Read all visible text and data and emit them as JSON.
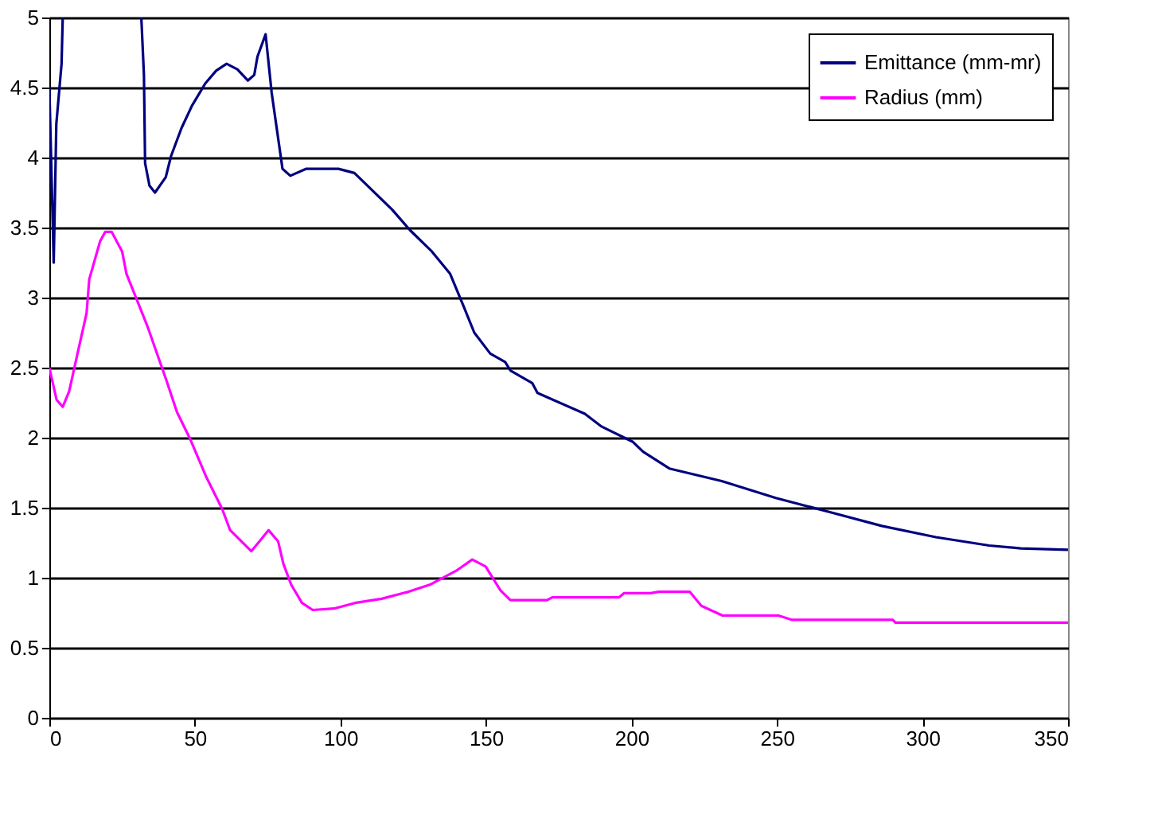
{
  "chart_data": {
    "type": "line",
    "xlim": [
      0,
      350
    ],
    "xticks": [
      0,
      50,
      100,
      150,
      200,
      250,
      300,
      350
    ],
    "ylim": [
      0,
      5
    ],
    "yticks": [
      0,
      0.5,
      1,
      1.5,
      2,
      2.5,
      3,
      3.5,
      4,
      4.5,
      5
    ],
    "grid": "y",
    "legend": "top right",
    "marker": "none",
    "line_style": "solid",
    "series": [
      {
        "name": "Emittance (mm-mr)",
        "color": "#000080",
        "x": [
          0,
          1.5,
          2.4,
          4.2,
          4.6,
          18,
          31.6,
          32.5,
          32.9,
          34.4,
          36.3,
          40,
          41.8,
          45.4,
          49,
          53.6,
          57.3,
          60.9,
          64.6,
          68.2,
          70.4,
          71.5,
          74.3,
          76.4,
          80.1,
          82.8,
          88.3,
          99.3,
          104.8,
          117.7,
          124,
          131.4,
          137.7,
          142.3,
          146,
          151.5,
          156.6,
          158.4,
          165.9,
          167.7,
          184,
          189.7,
          200.5,
          204,
          213,
          231,
          249.6,
          267.9,
          286,
          304.6,
          322.9,
          333.8,
          350
        ],
        "values": [
          4.5,
          3.25,
          4.24,
          4.67,
          5.0,
          null,
          5.0,
          4.59,
          3.96,
          3.8,
          3.75,
          3.86,
          4.01,
          4.21,
          4.37,
          4.53,
          4.62,
          4.67,
          4.63,
          4.55,
          4.59,
          4.72,
          4.88,
          4.46,
          3.92,
          3.87,
          3.92,
          3.92,
          3.89,
          3.63,
          3.48,
          3.33,
          3.17,
          2.94,
          2.75,
          2.6,
          2.54,
          2.48,
          2.39,
          2.32,
          2.17,
          2.08,
          1.97,
          1.9,
          1.78,
          1.69,
          1.57,
          1.47,
          1.37,
          1.29,
          1.23,
          1.21,
          1.2
        ]
      },
      {
        "name": "Radius (mm)",
        "color": "#ff00ff",
        "x": [
          0,
          2.5,
          4.6,
          6.8,
          10.1,
          12.8,
          13.7,
          17.4,
          19.2,
          21.4,
          25,
          26.5,
          33.8,
          40.2,
          43.9,
          48.4,
          53.9,
          59.4,
          62.1,
          69.4,
          72.2,
          75.3,
          78.6,
          80.4,
          83.1,
          86.8,
          90.5,
          97.8,
          105,
          114.2,
          123.4,
          130.7,
          139.8,
          145.3,
          149.9,
          155,
          158.4,
          171,
          172.8,
          195.7,
          197.5,
          206.6,
          209.3,
          215.7,
          220,
          224,
          231.3,
          250.5,
          255,
          289.8,
          290.7,
          350
        ],
        "values": [
          2.5,
          2.27,
          2.22,
          2.33,
          2.64,
          2.89,
          3.13,
          3.4,
          3.47,
          3.47,
          3.33,
          3.17,
          2.79,
          2.41,
          2.18,
          1.99,
          1.72,
          1.49,
          1.34,
          1.19,
          1.26,
          1.34,
          1.26,
          1.1,
          0.95,
          0.82,
          0.77,
          0.78,
          0.82,
          0.85,
          0.9,
          0.95,
          1.05,
          1.13,
          1.08,
          0.91,
          0.84,
          0.84,
          0.86,
          0.86,
          0.89,
          0.89,
          0.9,
          0.9,
          0.9,
          0.8,
          0.73,
          0.73,
          0.7,
          0.7,
          0.68,
          0.68
        ]
      }
    ]
  }
}
